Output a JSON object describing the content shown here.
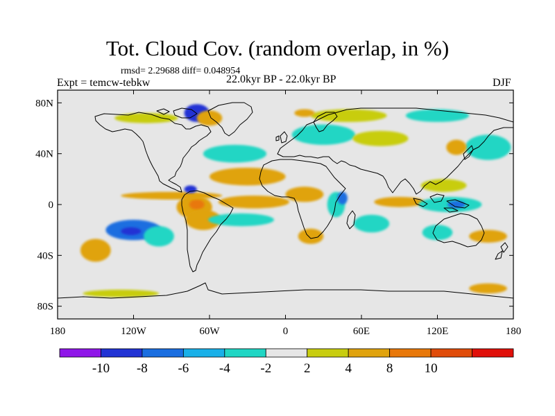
{
  "title": "Tot. Cloud Cov. (random overlap, in %)",
  "stats": "rmsd= 2.29688 diff= 0.048954",
  "experiment": "Expt = temcw-tebkw",
  "period": "22.0kyr BP - 22.0kyr BP",
  "season": "DJF",
  "map": {
    "projection": "cylindrical-equidistant",
    "lon_range": [
      -180,
      180
    ],
    "lat_range": [
      -90,
      90
    ],
    "background_color": "#e6e6e6",
    "x_ticks": [
      {
        "lon": -180,
        "label": "180"
      },
      {
        "lon": -120,
        "label": "120W"
      },
      {
        "lon": -60,
        "label": "60W"
      },
      {
        "lon": 0,
        "label": "0"
      },
      {
        "lon": 60,
        "label": "60E"
      },
      {
        "lon": 120,
        "label": "120E"
      },
      {
        "lon": 180,
        "label": "180"
      }
    ],
    "y_ticks": [
      {
        "lat": 80,
        "label": "80N"
      },
      {
        "lat": 40,
        "label": "40N"
      },
      {
        "lat": 0,
        "label": "0"
      },
      {
        "lat": -40,
        "label": "40S"
      },
      {
        "lat": -80,
        "label": "80S"
      }
    ]
  },
  "colorbar": {
    "colors": [
      "#8f16e8",
      "#2233d4",
      "#1a6ee0",
      "#19b0e8",
      "#20d6c4",
      "#e6e6e6",
      "#c8cd10",
      "#e0a30e",
      "#e8780a",
      "#e04c0a",
      "#e0100a"
    ],
    "labels": [
      {
        "index": 1,
        "text": "-10"
      },
      {
        "index": 2,
        "text": "-8"
      },
      {
        "index": 3,
        "text": "-6"
      },
      {
        "index": 4,
        "text": "-4"
      },
      {
        "index": 5,
        "text": "-2"
      },
      {
        "index": 6,
        "text": "2"
      },
      {
        "index": 7,
        "text": "4"
      },
      {
        "index": 8,
        "text": "8"
      },
      {
        "index": 9,
        "text": "10"
      }
    ]
  },
  "anomalies": [
    {
      "lon": -120,
      "lat": -20,
      "rx": 22,
      "ry": 8,
      "value": -8
    },
    {
      "lon": -122,
      "lat": -21,
      "rx": 8,
      "ry": 3,
      "value": -10
    },
    {
      "lon": -100,
      "lat": -25,
      "rx": 12,
      "ry": 8,
      "value": -4
    },
    {
      "lon": -150,
      "lat": -36,
      "rx": 12,
      "ry": 9,
      "value": 6
    },
    {
      "lon": -72,
      "lat": -2,
      "rx": 14,
      "ry": 9,
      "value": 6
    },
    {
      "lon": -70,
      "lat": 0,
      "rx": 6,
      "ry": 4,
      "value": 9
    },
    {
      "lon": -65,
      "lat": -12,
      "rx": 14,
      "ry": 8,
      "value": 4
    },
    {
      "lon": -30,
      "lat": 22,
      "rx": 30,
      "ry": 7,
      "value": 4
    },
    {
      "lon": -90,
      "lat": 7,
      "rx": 40,
      "ry": 3,
      "value": 4
    },
    {
      "lon": -25,
      "lat": 2,
      "rx": 28,
      "ry": 5,
      "value": 4
    },
    {
      "lon": -35,
      "lat": -12,
      "rx": 26,
      "ry": 5,
      "value": -4
    },
    {
      "lon": -40,
      "lat": 40,
      "rx": 25,
      "ry": 7,
      "value": -4
    },
    {
      "lon": -20,
      "lat": 55,
      "rx": 20,
      "ry": 6,
      "value": -2
    },
    {
      "lon": 30,
      "lat": 55,
      "rx": 25,
      "ry": 8,
      "value": -4
    },
    {
      "lon": 75,
      "lat": 52,
      "rx": 22,
      "ry": 6,
      "value": 3
    },
    {
      "lon": 120,
      "lat": 70,
      "rx": 25,
      "ry": 5,
      "value": -4
    },
    {
      "lon": 50,
      "lat": 70,
      "rx": 30,
      "ry": 5,
      "value": 3
    },
    {
      "lon": -70,
      "lat": 72,
      "rx": 10,
      "ry": 7,
      "value": -10
    },
    {
      "lon": -60,
      "lat": 68,
      "rx": 10,
      "ry": 6,
      "value": 4
    },
    {
      "lon": 15,
      "lat": 72,
      "rx": 8,
      "ry": 3,
      "value": 6
    },
    {
      "lon": 40,
      "lat": 0,
      "rx": 7,
      "ry": 10,
      "value": -4
    },
    {
      "lon": 45,
      "lat": 5,
      "rx": 4,
      "ry": 5,
      "value": -8
    },
    {
      "lon": 15,
      "lat": 8,
      "rx": 15,
      "ry": 6,
      "value": 4
    },
    {
      "lon": 20,
      "lat": -25,
      "rx": 10,
      "ry": 6,
      "value": 6
    },
    {
      "lon": 68,
      "lat": -15,
      "rx": 14,
      "ry": 7,
      "value": -4
    },
    {
      "lon": 90,
      "lat": 2,
      "rx": 20,
      "ry": 4,
      "value": 4
    },
    {
      "lon": 130,
      "lat": 0,
      "rx": 25,
      "ry": 6,
      "value": -4
    },
    {
      "lon": 135,
      "lat": 0,
      "rx": 7,
      "ry": 3,
      "value": -8
    },
    {
      "lon": 120,
      "lat": -22,
      "rx": 12,
      "ry": 6,
      "value": -4
    },
    {
      "lon": 160,
      "lat": -25,
      "rx": 15,
      "ry": 5,
      "value": 4
    },
    {
      "lon": 125,
      "lat": 15,
      "rx": 18,
      "ry": 5,
      "value": 3
    },
    {
      "lon": 160,
      "lat": 45,
      "rx": 18,
      "ry": 10,
      "value": -4
    },
    {
      "lon": 135,
      "lat": 45,
      "rx": 8,
      "ry": 6,
      "value": 6
    },
    {
      "lon": -45,
      "lat": -60,
      "rx": 40,
      "ry": 4,
      "value": -2
    },
    {
      "lon": 30,
      "lat": -62,
      "rx": 35,
      "ry": 4,
      "value": -2
    },
    {
      "lon": 110,
      "lat": -62,
      "rx": 25,
      "ry": 4,
      "value": -2
    },
    {
      "lon": 160,
      "lat": -66,
      "rx": 15,
      "ry": 4,
      "value": 6
    },
    {
      "lon": -130,
      "lat": -70,
      "rx": 30,
      "ry": 3,
      "value": 3
    },
    {
      "lon": -110,
      "lat": 68,
      "rx": 25,
      "ry": 4,
      "value": 3
    },
    {
      "lon": -75,
      "lat": 12,
      "rx": 5,
      "ry": 3,
      "value": -10
    }
  ]
}
